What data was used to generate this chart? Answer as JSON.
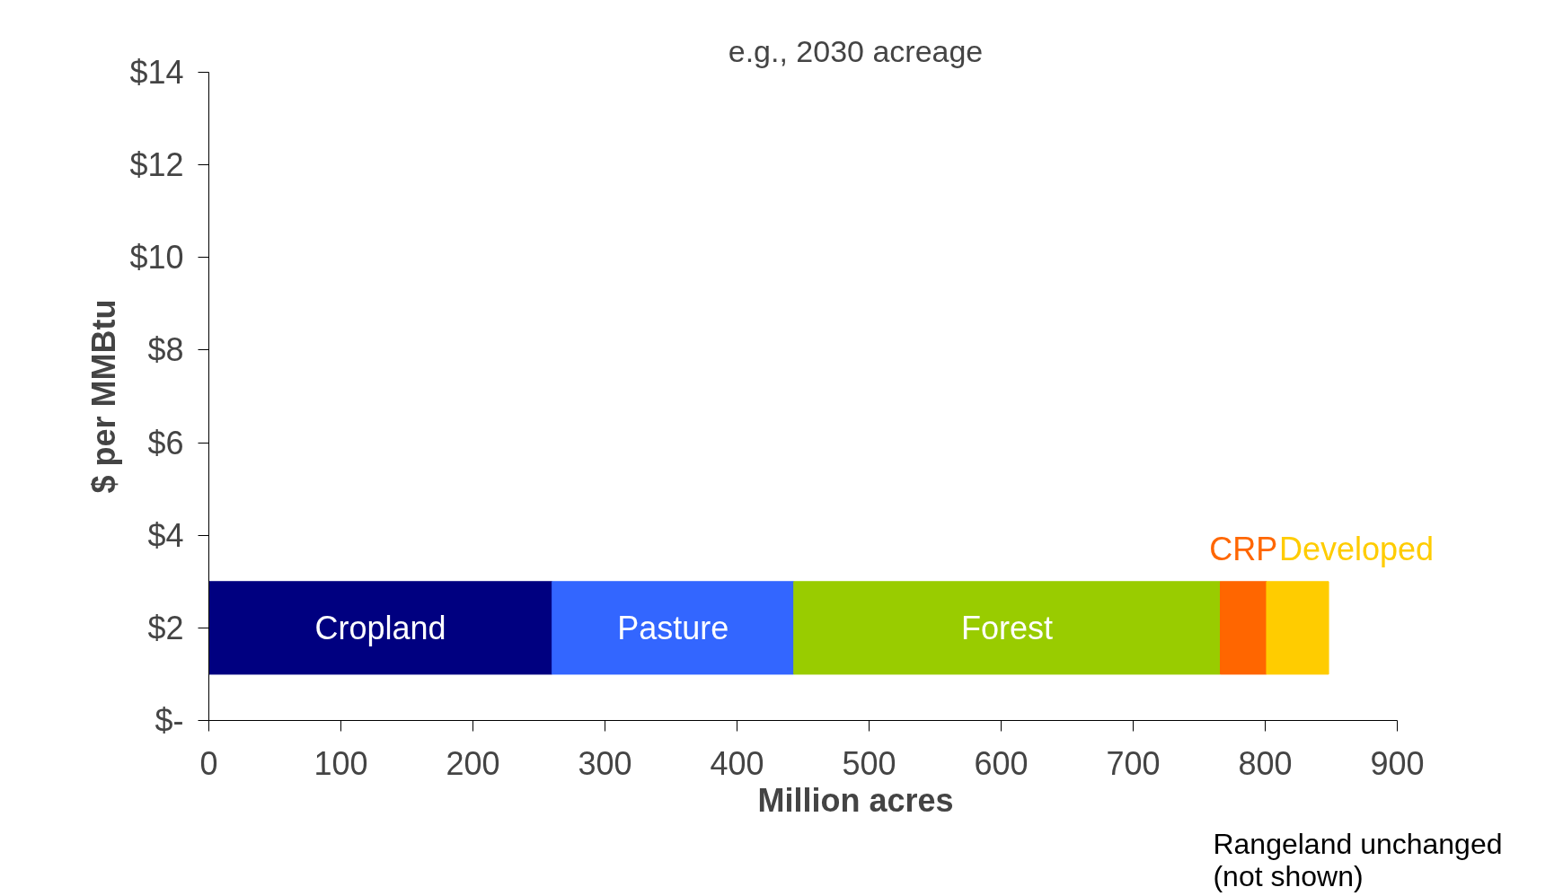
{
  "chart_data": {
    "type": "bar",
    "orientation": "horizontal",
    "stacked": true,
    "title": "e.g., 2030 acreage",
    "xlabel": "Million acres",
    "ylabel": "$ per MMBtu",
    "x": [
      2
    ],
    "series": [
      {
        "name": "Cropland",
        "color": "#000080",
        "values": [
          260
        ]
      },
      {
        "name": "Pasture",
        "color": "#3366ff",
        "values": [
          183
        ]
      },
      {
        "name": "Forest",
        "color": "#99cc00",
        "values": [
          323
        ]
      },
      {
        "name": "CRP",
        "color": "#ff6600",
        "values": [
          35
        ]
      },
      {
        "name": "Developed",
        "color": "#ffcc00",
        "values": [
          47
        ]
      }
    ],
    "xlim": [
      0,
      900
    ],
    "xticks": [
      0,
      100,
      200,
      300,
      400,
      500,
      600,
      700,
      800,
      900
    ],
    "ylim": [
      0,
      14
    ],
    "yticks": [
      {
        "value": 0,
        "label": "$-"
      },
      {
        "value": 2,
        "label": "$2"
      },
      {
        "value": 4,
        "label": "$4"
      },
      {
        "value": 6,
        "label": "$6"
      },
      {
        "value": 8,
        "label": "$8"
      },
      {
        "value": 10,
        "label": "$10"
      },
      {
        "value": 12,
        "label": "$12"
      },
      {
        "value": 14,
        "label": "$14"
      }
    ],
    "grid": false,
    "annotations": [
      "Rangeland unchanged\n(not shown)"
    ]
  }
}
